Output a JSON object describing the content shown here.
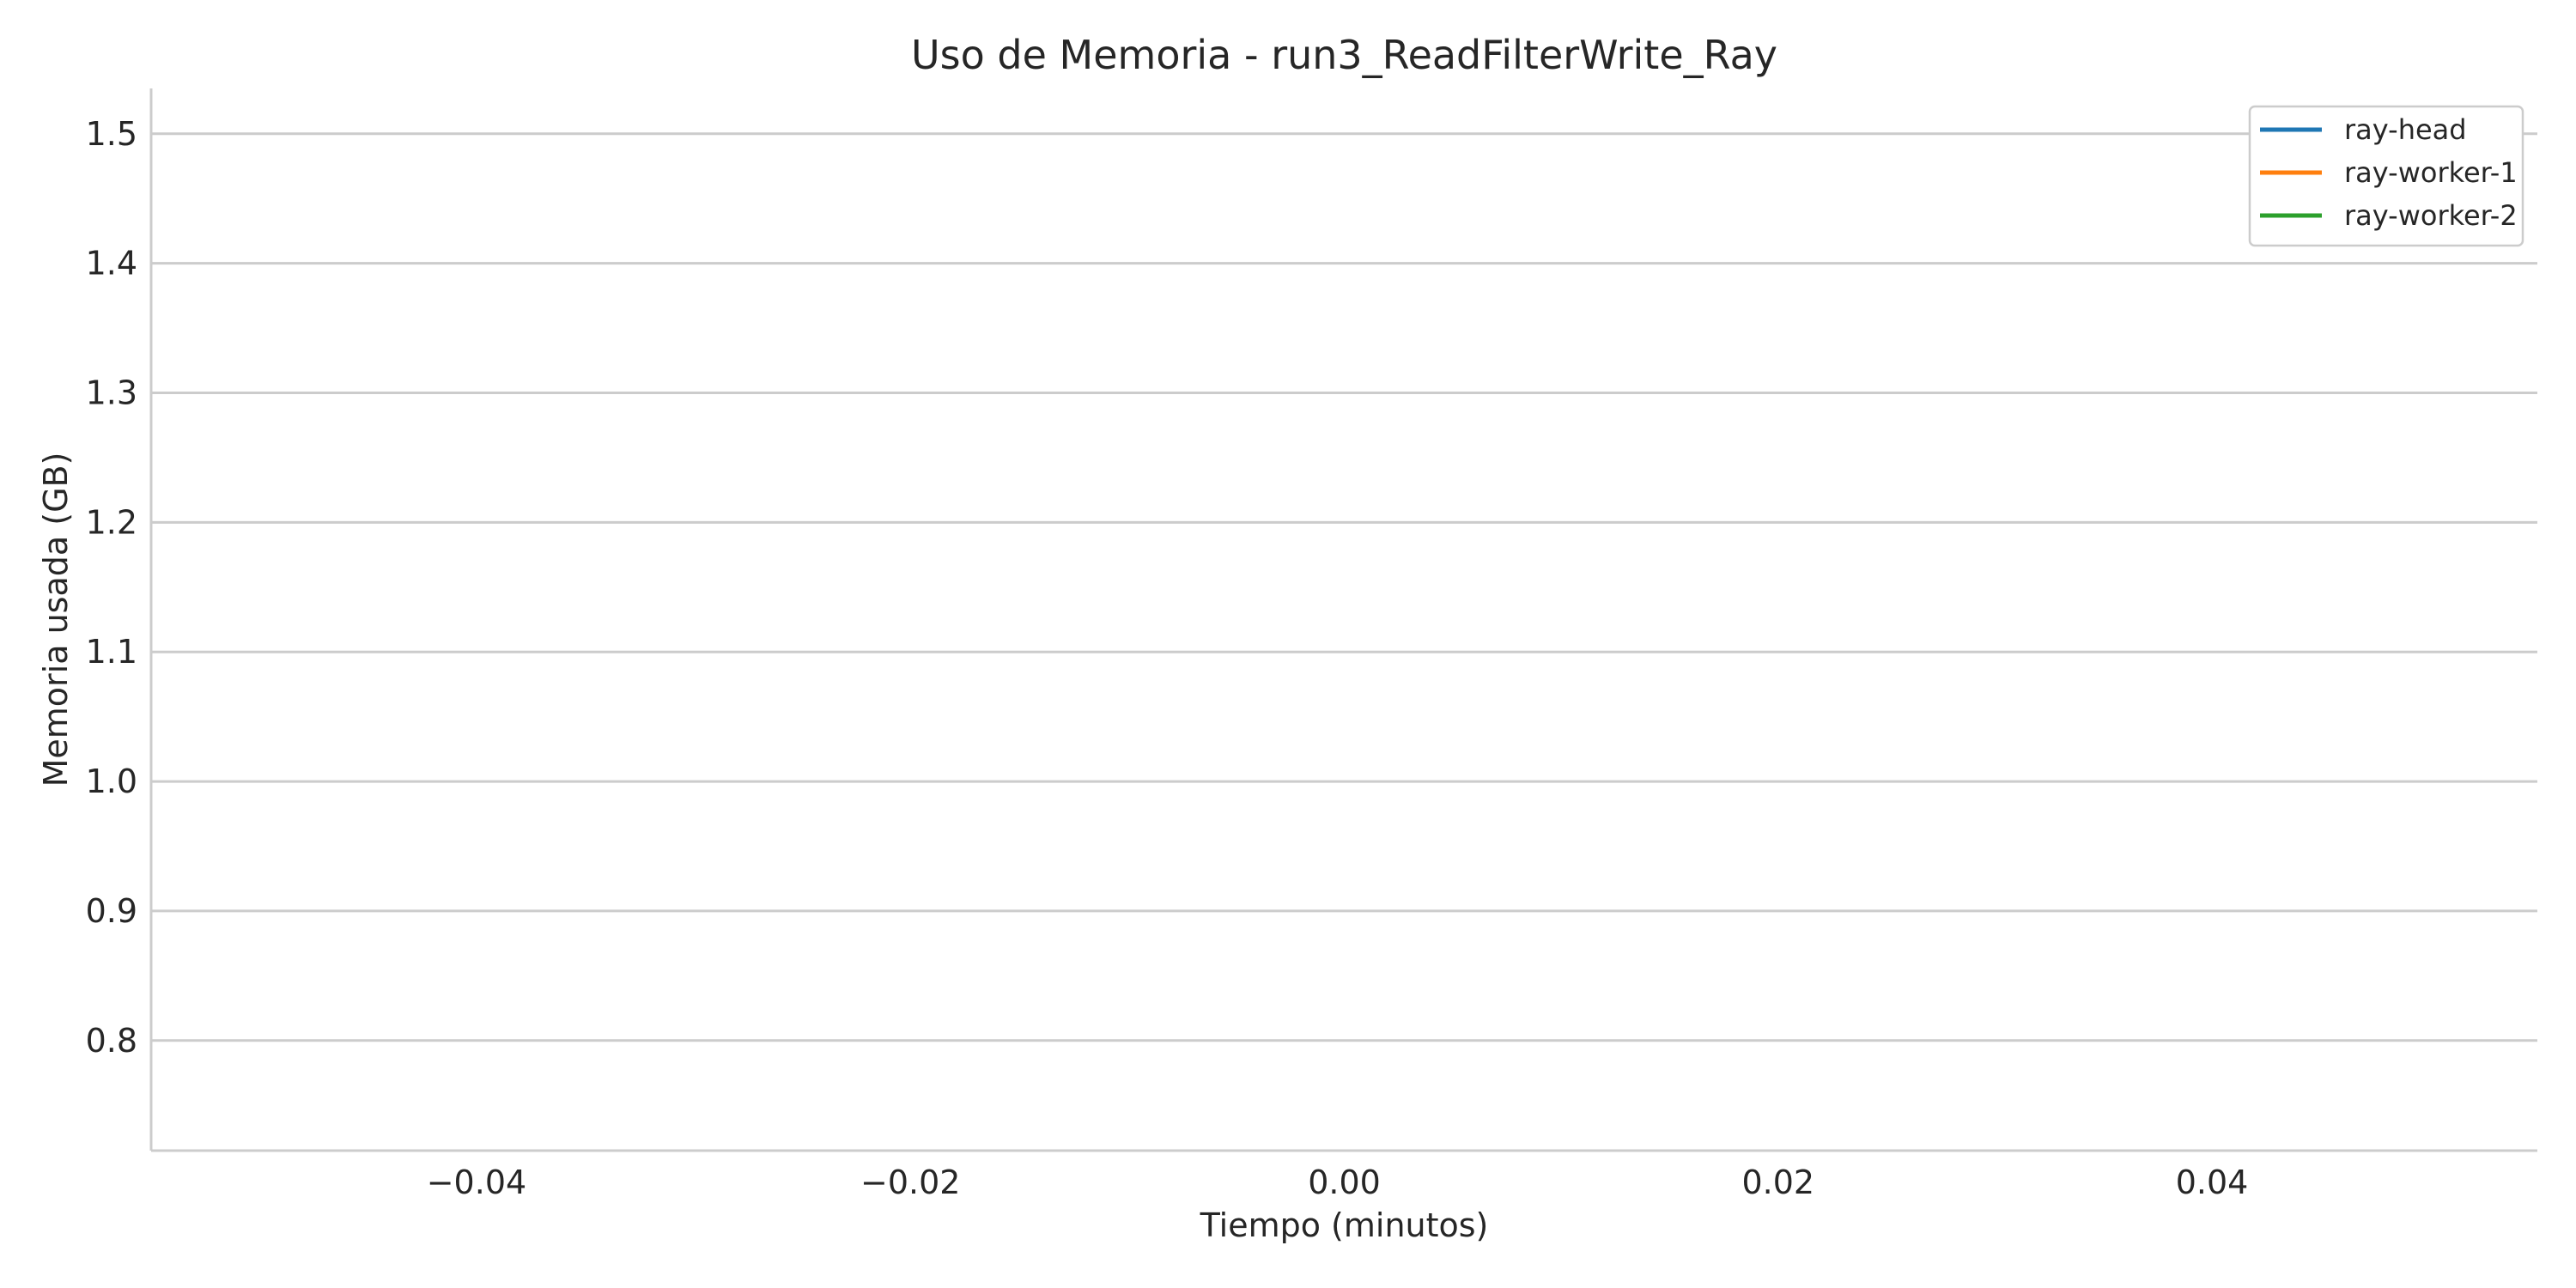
{
  "chart_data": {
    "type": "line",
    "title": "Uso de Memoria - run3_ReadFilterWrite_Ray",
    "xlabel": "Tiempo (minutos)",
    "ylabel": "Memoria usada (GB)",
    "xlim": [
      -0.055,
      0.055
    ],
    "ylim": [
      0.715,
      1.535
    ],
    "x_ticks": [
      -0.04,
      -0.02,
      0.0,
      0.02,
      0.04
    ],
    "x_tick_labels": [
      "−0.04",
      "−0.02",
      "0.00",
      "0.02",
      "0.04"
    ],
    "y_ticks": [
      0.8,
      0.9,
      1.0,
      1.1,
      1.2,
      1.3,
      1.4,
      1.5
    ],
    "y_tick_labels": [
      "0.8",
      "0.9",
      "1.0",
      "1.1",
      "1.2",
      "1.3",
      "1.4",
      "1.5"
    ],
    "grid": "y-only",
    "legend_position": "top-right",
    "series": [
      {
        "name": "ray-head",
        "color": "#1f77b4",
        "x": [],
        "y": []
      },
      {
        "name": "ray-worker-1",
        "color": "#ff7f0e",
        "x": [],
        "y": []
      },
      {
        "name": "ray-worker-2",
        "color": "#2ca02c",
        "x": [],
        "y": []
      }
    ]
  }
}
